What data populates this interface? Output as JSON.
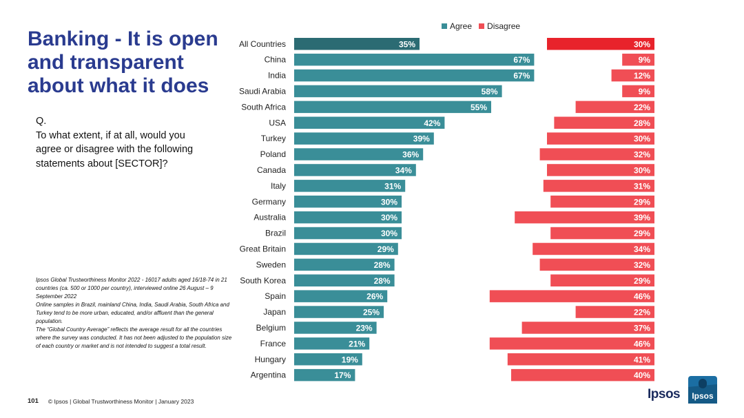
{
  "title": "Banking - It is open and transparent about what it does",
  "question": {
    "label": "Q.",
    "text": "To what extent, if at all, would you agree or disagree with the following statements about [SECTOR]?"
  },
  "source_notes": [
    "Ipsos Global Trustworthiness Monitor 2022 - 16017 adults aged 16/18-74 in 21 countries (ca. 500 or 1000 per country), interviewed online 26 August – 9 September 2022",
    "Online samples in Brazil, mainland China, India, Saudi Arabia, South Africa and Turkey tend to be more urban, educated, and/or affluent than the general population.",
    "The “Global Country Average” reflects the average result for all the countries where the survey was conducted. It has not been adjusted to the population size of each country or market and is not intended to suggest a total result."
  ],
  "footer": {
    "page_number": "101",
    "text": "© Ipsos | Global Trustworthiness Monitor | January 2023"
  },
  "logo": {
    "wordmark": "Ipsos",
    "badge": "Ipsos"
  },
  "colors": {
    "agree": "#3a8e98",
    "agree_highlight": "#2b6b73",
    "disagree": "#f04e55",
    "disagree_highlight": "#e8232b",
    "title": "#2a3b8f"
  },
  "chart_data": {
    "type": "bar",
    "orientation": "horizontal",
    "categories": [
      "All Countries",
      "China",
      "India",
      "Saudi Arabia",
      "South Africa",
      "USA",
      "Turkey",
      "Poland",
      "Canada",
      "Italy",
      "Germany",
      "Australia",
      "Brazil",
      "Great Britain",
      "Sweden",
      "South Korea",
      "Spain",
      "Japan",
      "Belgium",
      "France",
      "Hungary",
      "Argentina"
    ],
    "series": [
      {
        "name": "Agree",
        "values": [
          35,
          67,
          67,
          58,
          55,
          42,
          39,
          36,
          34,
          31,
          30,
          30,
          30,
          29,
          28,
          28,
          26,
          25,
          23,
          21,
          19,
          17
        ]
      },
      {
        "name": "Disagree",
        "values": [
          30,
          9,
          12,
          9,
          22,
          28,
          30,
          32,
          30,
          31,
          29,
          39,
          29,
          34,
          32,
          29,
          46,
          22,
          37,
          46,
          41,
          40
        ]
      }
    ],
    "value_format": "{v}%",
    "legend": "top",
    "highlight_category": "All Countries"
  }
}
